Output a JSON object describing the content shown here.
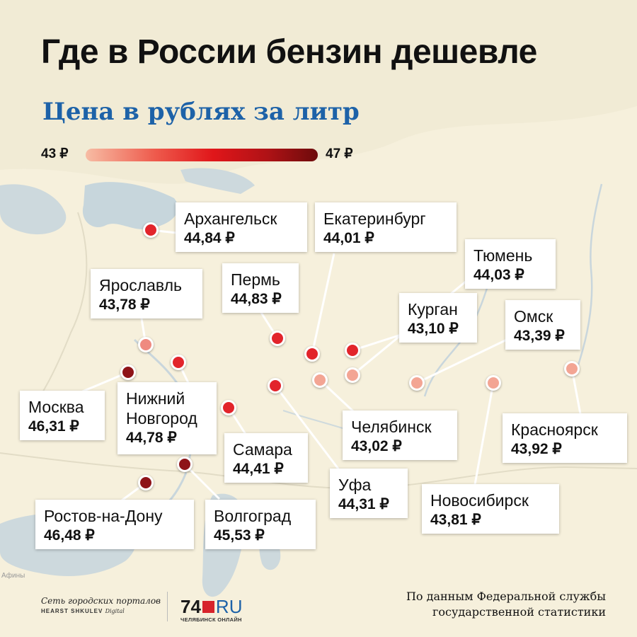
{
  "title": "Где в России бензин дешевле",
  "subtitle": "Цена в рублях за литр",
  "legend": {
    "min_label": "43 ₽",
    "max_label": "47 ₽",
    "colors": [
      "#f7bca4",
      "#ee5a4c",
      "#e0161a",
      "#b01216",
      "#6d0b0b"
    ]
  },
  "map_place_label": "Афины",
  "cities": [
    {
      "name": "Архангельск",
      "price": "44,84 ₽",
      "color": "#e2242b"
    },
    {
      "name": "Екатеринбург",
      "price": "44,01 ₽",
      "color": "#e2242b"
    },
    {
      "name": "Тюмень",
      "price": "44,03 ₽",
      "color": "#e2242b"
    },
    {
      "name": "Ярославль",
      "price": "43,78 ₽",
      "color": "#ef8a80"
    },
    {
      "name": "Пермь",
      "price": "44,83 ₽",
      "color": "#e2242b"
    },
    {
      "name": "Курган",
      "price": "43,10 ₽",
      "color": "#f3a594"
    },
    {
      "name": "Омск",
      "price": "43,39 ₽",
      "color": "#f3a594"
    },
    {
      "name": "Москва",
      "price": "46,31 ₽",
      "color": "#8e1318"
    },
    {
      "name": "Нижний Новгород",
      "price": "44,78 ₽",
      "color": "#e2242b"
    },
    {
      "name": "Самара",
      "price": "44,41 ₽",
      "color": "#e2242b"
    },
    {
      "name": "Челябинск",
      "price": "43,02 ₽",
      "color": "#f3a594"
    },
    {
      "name": "Красноярск",
      "price": "43,92 ₽",
      "color": "#f3a594"
    },
    {
      "name": "Уфа",
      "price": "44,31 ₽",
      "color": "#e2242b"
    },
    {
      "name": "Новосибирск",
      "price": "43,81 ₽",
      "color": "#f3a594"
    },
    {
      "name": "Ростов-на-Дону",
      "price": "46,48 ₽",
      "color": "#8e1318"
    },
    {
      "name": "Волгоград",
      "price": "45,53 ₽",
      "color": "#8e1318"
    }
  ],
  "footer": {
    "network_logo_line1": "Сеть городских порталов",
    "network_logo_line2": "HEARST SHKULEV",
    "network_logo_line2b": "Digital",
    "portal_logo_num": "74",
    "portal_logo_ru": "RU",
    "portal_logo_sub": "ЧЕЛЯБИНСК ОНЛАЙН",
    "source_line1": "По данным Федеральной службы",
    "source_line2": "государственной статистики"
  }
}
